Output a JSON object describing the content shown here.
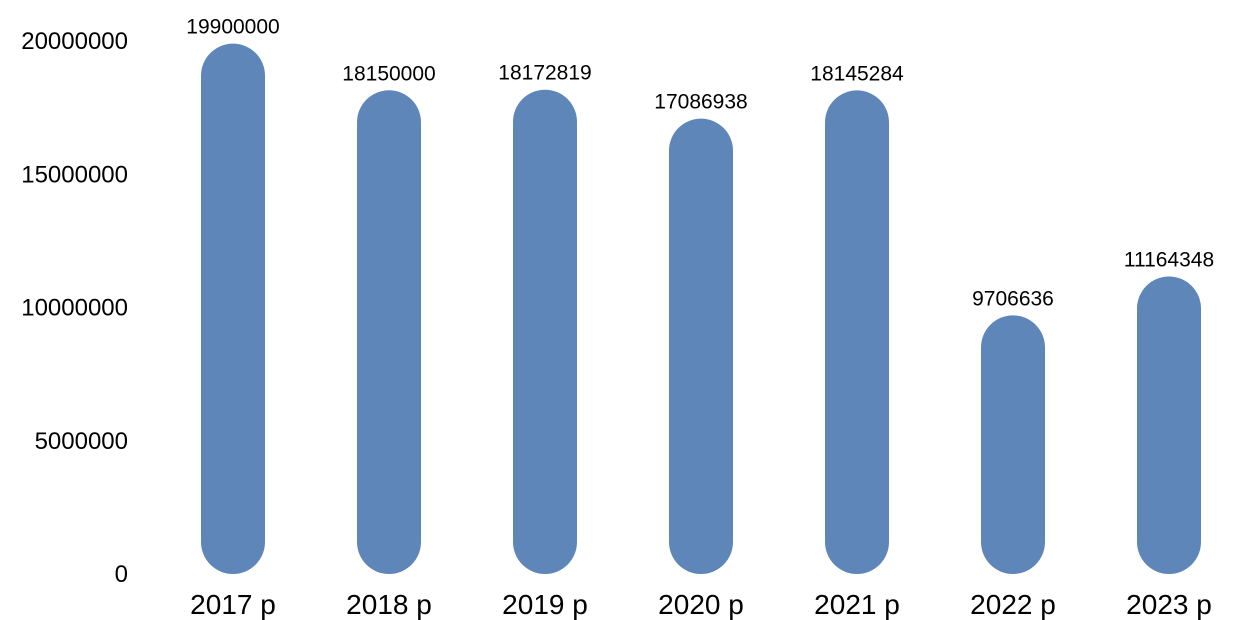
{
  "chart_data": {
    "type": "bar",
    "categories": [
      "2017 р",
      "2018 р",
      "2019 р",
      "2020 р",
      "2021 р",
      "2022 р",
      "2023 р"
    ],
    "values": [
      19900000,
      18150000,
      18172819,
      17086938,
      18145284,
      9706636,
      11164348
    ],
    "data_labels": [
      "19900000",
      "18150000",
      "18172819",
      "17086938",
      "18145284",
      "9706636",
      "11164348"
    ],
    "y_ticks": [
      0,
      5000000,
      10000000,
      15000000,
      20000000
    ],
    "y_tick_labels": [
      "0",
      "5000000",
      "10000000",
      "15000000",
      "20000000"
    ],
    "ylim": [
      0,
      20000000
    ],
    "title": "",
    "xlabel": "",
    "ylabel": "",
    "grid": false,
    "legend": "none",
    "bar_style": "rounded",
    "bar_color": "#5e86b9"
  }
}
